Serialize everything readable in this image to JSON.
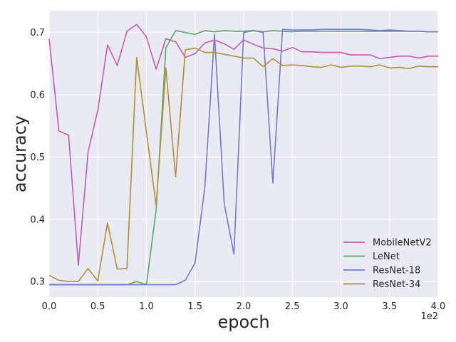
{
  "chart_data": {
    "type": "line",
    "title": "",
    "xlabel": "epoch",
    "ylabel": "accuracy",
    "x_offset_label": "1e2",
    "xlim": [
      0,
      4.0
    ],
    "ylim": [
      0.275,
      0.735
    ],
    "xticks": [
      "0.0",
      "0.5",
      "1.0",
      "1.5",
      "2.0",
      "2.5",
      "3.0",
      "3.5",
      "4.0"
    ],
    "yticks": [
      "0.3",
      "0.4",
      "0.5",
      "0.6",
      "0.7"
    ],
    "grid": true,
    "legend_position": "lower-right",
    "x": [
      0.0,
      0.1,
      0.2,
      0.3,
      0.4,
      0.5,
      0.6,
      0.7,
      0.8,
      0.9,
      1.0,
      1.1,
      1.2,
      1.3,
      1.4,
      1.5,
      1.6,
      1.7,
      1.8,
      1.9,
      2.0,
      2.1,
      2.2,
      2.3,
      2.4,
      2.5,
      2.6,
      2.7,
      2.8,
      2.9,
      3.0,
      3.1,
      3.2,
      3.3,
      3.4,
      3.5,
      3.6,
      3.7,
      3.8,
      3.9,
      4.0
    ],
    "series": [
      {
        "name": "MobileNetV2",
        "color": "#c45cad",
        "values": [
          0.69,
          0.542,
          0.535,
          0.326,
          0.508,
          0.575,
          0.68,
          0.647,
          0.702,
          0.713,
          0.693,
          0.641,
          0.69,
          0.685,
          0.66,
          0.666,
          0.683,
          0.688,
          0.682,
          0.673,
          0.688,
          0.681,
          0.675,
          0.674,
          0.67,
          0.676,
          0.669,
          0.669,
          0.668,
          0.668,
          0.668,
          0.664,
          0.664,
          0.664,
          0.658,
          0.66,
          0.662,
          0.662,
          0.659,
          0.662,
          0.662
        ]
      },
      {
        "name": "LeNet",
        "color": "#55a868",
        "values": [
          0.295,
          0.295,
          0.295,
          0.295,
          0.295,
          0.295,
          0.295,
          0.295,
          0.295,
          0.3,
          0.295,
          0.415,
          0.675,
          0.703,
          0.7,
          0.697,
          0.703,
          0.701,
          0.703,
          0.702,
          0.702,
          0.703,
          0.701,
          0.703,
          0.702,
          0.701,
          0.702,
          0.702,
          0.702,
          0.702,
          0.702,
          0.702,
          0.702,
          0.702,
          0.702,
          0.702,
          0.702,
          0.702,
          0.702,
          0.701,
          0.701
        ]
      },
      {
        "name": "ResNet-18",
        "color": "#7179cf",
        "values": [
          0.295,
          0.295,
          0.295,
          0.295,
          0.295,
          0.295,
          0.295,
          0.295,
          0.295,
          0.295,
          0.295,
          0.295,
          0.295,
          0.295,
          0.302,
          0.33,
          0.45,
          0.697,
          0.425,
          0.344,
          0.7,
          0.703,
          0.7,
          0.458,
          0.705,
          0.704,
          0.704,
          0.704,
          0.705,
          0.705,
          0.705,
          0.705,
          0.705,
          0.704,
          0.703,
          0.704,
          0.703,
          0.702,
          0.702,
          0.701,
          0.701
        ]
      },
      {
        "name": "ResNet-34",
        "color": "#b08f3c",
        "values": [
          0.31,
          0.302,
          0.3,
          0.3,
          0.321,
          0.301,
          0.394,
          0.32,
          0.321,
          0.66,
          0.54,
          0.422,
          0.643,
          0.468,
          0.672,
          0.675,
          0.668,
          0.668,
          0.665,
          0.662,
          0.659,
          0.659,
          0.645,
          0.658,
          0.647,
          0.648,
          0.647,
          0.645,
          0.644,
          0.648,
          0.644,
          0.646,
          0.646,
          0.645,
          0.648,
          0.643,
          0.644,
          0.642,
          0.646,
          0.645,
          0.645
        ]
      }
    ]
  }
}
